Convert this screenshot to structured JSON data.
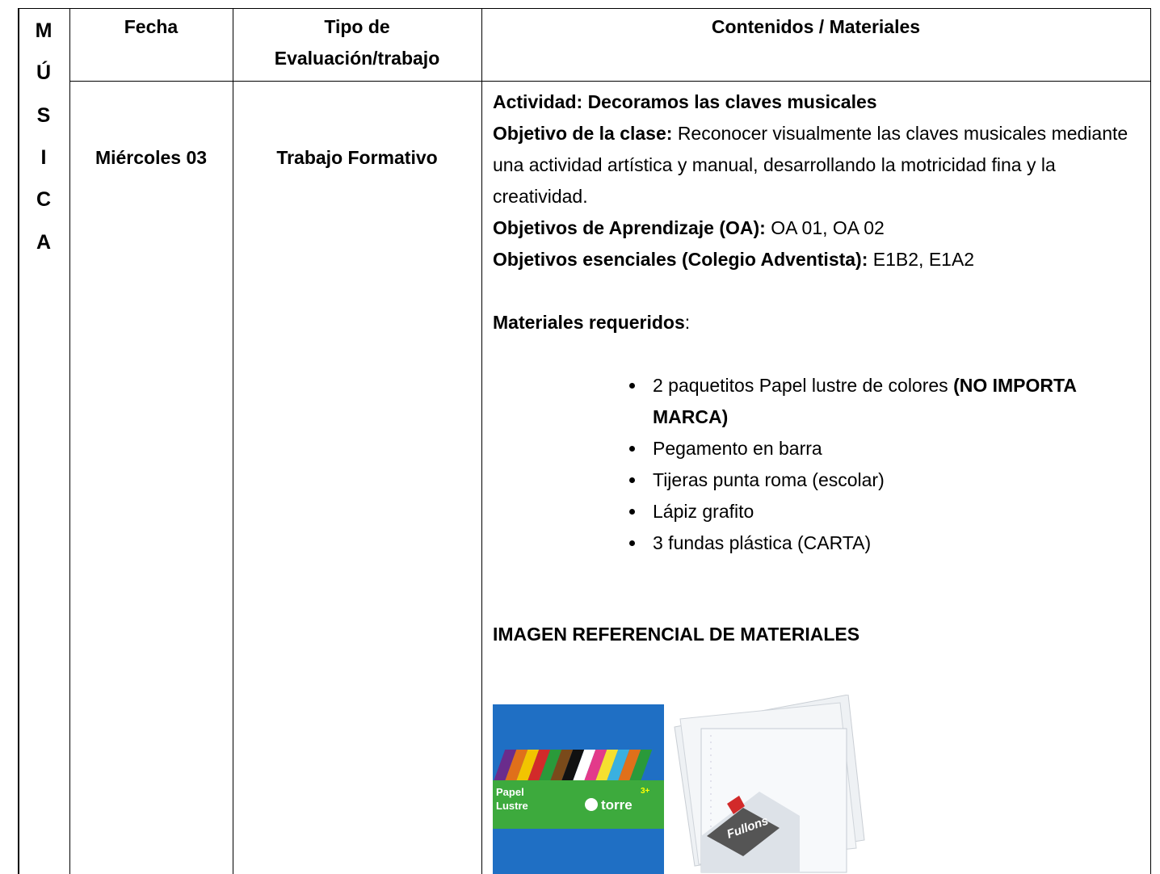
{
  "side_label": [
    "M",
    "Ú",
    "S",
    "I",
    "C",
    "A"
  ],
  "table": {
    "headers": {
      "fecha": "Fecha",
      "tipo": [
        "Tipo de",
        "Evaluación/trabajo"
      ],
      "contenidos": "Contenidos / Materiales"
    },
    "row": {
      "fecha": "Miércoles 03",
      "tipo": "Trabajo Formativo",
      "activity": "Actividad: Decoramos las claves musicales",
      "objective": {
        "label": "Objetivo de la clase:",
        "text": "Reconocer visualmente las claves musicales mediante una actividad artística y manual, desarrollando la motricidad fina y la creatividad."
      },
      "oa": {
        "label": "Objetivos de Aprendizaje (OA):",
        "text": "OA 01, OA 02"
      },
      "essential": {
        "label": "Objetivos esenciales (Colegio Adventista):",
        "text": "E1B2, E1A2"
      },
      "materials_label": {
        "label": "Materiales requeridos",
        "text": ":"
      },
      "materials": [
        {
          "text": "2 paquetitos Papel lustre de colores",
          "bold": "(NO IMPORTA MARCA)"
        },
        {
          "text": "Pegamento en barra"
        },
        {
          "text": "Tijeras punta roma (escolar)"
        },
        {
          "text": "Lápiz grafito"
        },
        {
          "text": "3 fundas plástica (CARTA)"
        }
      ],
      "images_title": "IMAGEN REFERENCIAL DE MATERIALES",
      "images": {
        "papel": {
          "line1": "Papel",
          "line2": "Lustre",
          "brand": "torre",
          "age": "3+"
        },
        "fundas": {
          "brand": "Fullons"
        }
      }
    }
  }
}
